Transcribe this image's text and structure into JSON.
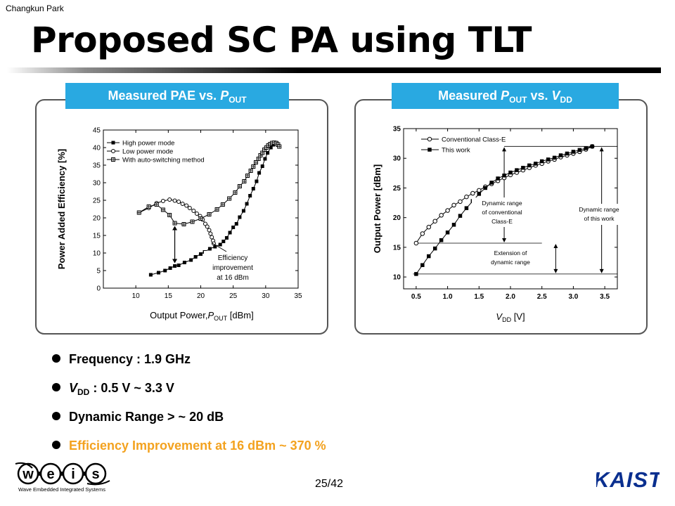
{
  "slide": {
    "author": "Changkun Park",
    "title": "Proposed SC PA using TLT",
    "page_number": "25/42"
  },
  "panels": {
    "left": {
      "label": "Measured PAE vs. ",
      "label_sym": "P",
      "label_sub": "OUT"
    },
    "right": {
      "label": "Measured ",
      "label_sym": "P",
      "label_sub": "OUT",
      "label_mid": " vs. ",
      "label_sym2": "V",
      "label_sub2": "DD"
    }
  },
  "bullets": [
    {
      "text": "Frequency : 1.9 GHz"
    },
    {
      "prefix": "V",
      "sub": "DD",
      "text": " : 0.5 V ~ 3.3 V"
    },
    {
      "text": "Dynamic Range > ~ 20 dB"
    },
    {
      "text": "Efficiency Improvement at 16 dBm ~ 370 %",
      "accent_color": "#f3a21f"
    }
  ],
  "logos": {
    "left_letters": [
      "w",
      "e",
      "i",
      "s"
    ],
    "left_caption": "Wave Embedded Integrated Systems",
    "right_text": "KAIST"
  },
  "colors": {
    "tag_background": "#29a9e1",
    "accent_text": "#f3a21f",
    "kaist_blue": "#0a2f8f"
  },
  "chart_data": [
    {
      "type": "scatter",
      "title": "Measured PAE vs. POUT",
      "xlabel": "Output Power, POUT [dBm]",
      "ylabel": "Power Added Efficiency [%]",
      "xlim": [
        5,
        35
      ],
      "ylim": [
        0,
        45
      ],
      "xticks": [
        10,
        15,
        20,
        25,
        30,
        35
      ],
      "yticks": [
        0,
        5,
        10,
        15,
        20,
        25,
        30,
        35,
        40,
        45
      ],
      "legend_position": "top-left",
      "series": [
        {
          "name": "High power mode",
          "marker": "filled-square",
          "points": [
            [
              12.3,
              3.8
            ],
            [
              13.5,
              4.4
            ],
            [
              14.5,
              5.0
            ],
            [
              15.3,
              5.7
            ],
            [
              16.0,
              6.3
            ],
            [
              16.6,
              6.5
            ],
            [
              17.5,
              7.3
            ],
            [
              18.5,
              8.0
            ],
            [
              19.2,
              8.9
            ],
            [
              20.0,
              9.7
            ],
            [
              20.6,
              10.3
            ],
            [
              21.4,
              11.2
            ],
            [
              22.2,
              11.8
            ],
            [
              23.0,
              12.4
            ],
            [
              23.5,
              13.3
            ],
            [
              24.0,
              14.3
            ],
            [
              24.5,
              15.8
            ],
            [
              25.0,
              17.3
            ],
            [
              25.5,
              18.3
            ],
            [
              26.0,
              20.2
            ],
            [
              26.6,
              22.0
            ],
            [
              27.1,
              24.0
            ],
            [
              27.6,
              26.3
            ],
            [
              28.1,
              28.3
            ],
            [
              28.6,
              30.4
            ],
            [
              29.0,
              32.8
            ],
            [
              29.5,
              34.7
            ],
            [
              29.9,
              36.8
            ],
            [
              30.3,
              38.5
            ],
            [
              30.8,
              40.0
            ],
            [
              31.2,
              40.8
            ],
            [
              31.5,
              41.2
            ],
            [
              31.7,
              41.3
            ],
            [
              31.9,
              40.7
            ],
            [
              32.1,
              40.2
            ]
          ]
        },
        {
          "name": "Low power mode",
          "marker": "open-circle",
          "points": [
            [
              10.5,
              21.5
            ],
            [
              12.0,
              22.8
            ],
            [
              13.2,
              24.2
            ],
            [
              14.2,
              24.8
            ],
            [
              15.2,
              25.2
            ],
            [
              16.0,
              24.9
            ],
            [
              16.6,
              24.6
            ],
            [
              17.2,
              24.0
            ],
            [
              17.8,
              23.5
            ],
            [
              18.3,
              22.8
            ],
            [
              18.9,
              22.0
            ],
            [
              19.4,
              21.2
            ],
            [
              19.9,
              20.5
            ],
            [
              20.3,
              19.5
            ],
            [
              20.7,
              18.3
            ],
            [
              21.0,
              17.5
            ],
            [
              21.3,
              16.5
            ],
            [
              21.5,
              15.5
            ],
            [
              21.7,
              14.5
            ],
            [
              21.9,
              13.5
            ],
            [
              22.0,
              12.7
            ]
          ]
        },
        {
          "name": "With auto-switching method",
          "marker": "crossed-square",
          "points": [
            [
              10.5,
              21.5
            ],
            [
              12.0,
              23.2
            ],
            [
              13.2,
              23.8
            ],
            [
              14.2,
              22.3
            ],
            [
              15.2,
              20.8
            ],
            [
              16.0,
              18.5
            ],
            [
              17.4,
              18.2
            ],
            [
              18.7,
              18.9
            ],
            [
              20.0,
              19.8
            ],
            [
              21.3,
              21.0
            ],
            [
              22.5,
              22.4
            ],
            [
              23.4,
              23.8
            ],
            [
              24.4,
              25.5
            ],
            [
              25.3,
              27.2
            ],
            [
              26.0,
              29.0
            ],
            [
              26.7,
              30.4
            ],
            [
              27.2,
              32.0
            ],
            [
              27.7,
              33.4
            ],
            [
              28.1,
              34.6
            ],
            [
              28.5,
              35.8
            ],
            [
              28.9,
              36.8
            ],
            [
              29.2,
              37.8
            ],
            [
              29.5,
              38.5
            ],
            [
              29.8,
              39.4
            ],
            [
              30.1,
              40.0
            ],
            [
              30.4,
              40.6
            ],
            [
              30.7,
              41.0
            ],
            [
              31.0,
              41.3
            ],
            [
              31.3,
              41.4
            ],
            [
              31.6,
              41.3
            ],
            [
              31.9,
              40.9
            ],
            [
              32.1,
              40.3
            ]
          ]
        }
      ],
      "annotation": {
        "text": [
          "Efficiency",
          "improvement",
          "at 16 dBm"
        ],
        "x_at": 16,
        "y_from": 18.3,
        "y_to": 6.3,
        "target": [
          21.5,
          12.5
        ]
      }
    },
    {
      "type": "scatter",
      "title": "Measured POUT vs. VDD",
      "xlabel": "VDD [V]",
      "ylabel": "Output Power [dBm]",
      "xlim": [
        0.3,
        3.7
      ],
      "ylim": [
        8,
        35
      ],
      "xticks": [
        0.5,
        1.0,
        1.5,
        2.0,
        2.5,
        3.0,
        3.5
      ],
      "yticks": [
        10,
        15,
        20,
        25,
        30,
        35
      ],
      "legend_position": "top-left",
      "series": [
        {
          "name": "Conventional Class-E",
          "marker": "open-circle",
          "points": [
            [
              0.5,
              15.7
            ],
            [
              0.6,
              17.3
            ],
            [
              0.7,
              18.4
            ],
            [
              0.8,
              19.4
            ],
            [
              0.9,
              20.4
            ],
            [
              1.0,
              21.2
            ],
            [
              1.1,
              22.1
            ],
            [
              1.2,
              22.7
            ],
            [
              1.3,
              23.5
            ],
            [
              1.4,
              24.1
            ],
            [
              1.5,
              24.6
            ],
            [
              1.6,
              25.2
            ],
            [
              1.7,
              25.7
            ],
            [
              1.8,
              26.2
            ],
            [
              1.9,
              26.7
            ],
            [
              2.0,
              27.2
            ],
            [
              2.1,
              27.6
            ],
            [
              2.2,
              28.0
            ],
            [
              2.3,
              28.4
            ],
            [
              2.4,
              28.8
            ],
            [
              2.5,
              29.1
            ],
            [
              2.6,
              29.5
            ],
            [
              2.7,
              29.8
            ],
            [
              2.8,
              30.2
            ],
            [
              2.9,
              30.5
            ],
            [
              3.0,
              30.8
            ],
            [
              3.1,
              31.1
            ],
            [
              3.2,
              31.5
            ],
            [
              3.3,
              32.0
            ]
          ]
        },
        {
          "name": "This work",
          "marker": "filled-square",
          "points": [
            [
              0.5,
              10.5
            ],
            [
              0.6,
              12.0
            ],
            [
              0.7,
              13.5
            ],
            [
              0.8,
              14.8
            ],
            [
              0.9,
              16.2
            ],
            [
              1.0,
              17.5
            ],
            [
              1.1,
              18.8
            ],
            [
              1.2,
              20.3
            ],
            [
              1.3,
              21.6
            ],
            [
              1.4,
              22.8
            ],
            [
              1.5,
              24.0
            ],
            [
              1.6,
              25.0
            ],
            [
              1.7,
              25.9
            ],
            [
              1.8,
              26.6
            ],
            [
              1.9,
              27.1
            ],
            [
              2.0,
              27.6
            ],
            [
              2.1,
              28.0
            ],
            [
              2.2,
              28.4
            ],
            [
              2.3,
              28.8
            ],
            [
              2.4,
              29.1
            ],
            [
              2.5,
              29.5
            ],
            [
              2.6,
              29.8
            ],
            [
              2.7,
              30.1
            ],
            [
              2.8,
              30.5
            ],
            [
              2.9,
              30.8
            ],
            [
              3.0,
              31.1
            ],
            [
              3.1,
              31.4
            ],
            [
              3.2,
              31.7
            ],
            [
              3.3,
              32.0
            ]
          ]
        }
      ],
      "annotations": [
        {
          "text": [
            "Dynamic range",
            "of conventional",
            "Class-E"
          ]
        },
        {
          "text": [
            "Dynamic range",
            "of this work"
          ]
        },
        {
          "text": [
            "Extension of",
            "dynamic range"
          ]
        }
      ],
      "reference_levels": {
        "this_work_max": 32.0,
        "conventional_min": 15.7,
        "this_work_min": 10.5
      }
    }
  ]
}
